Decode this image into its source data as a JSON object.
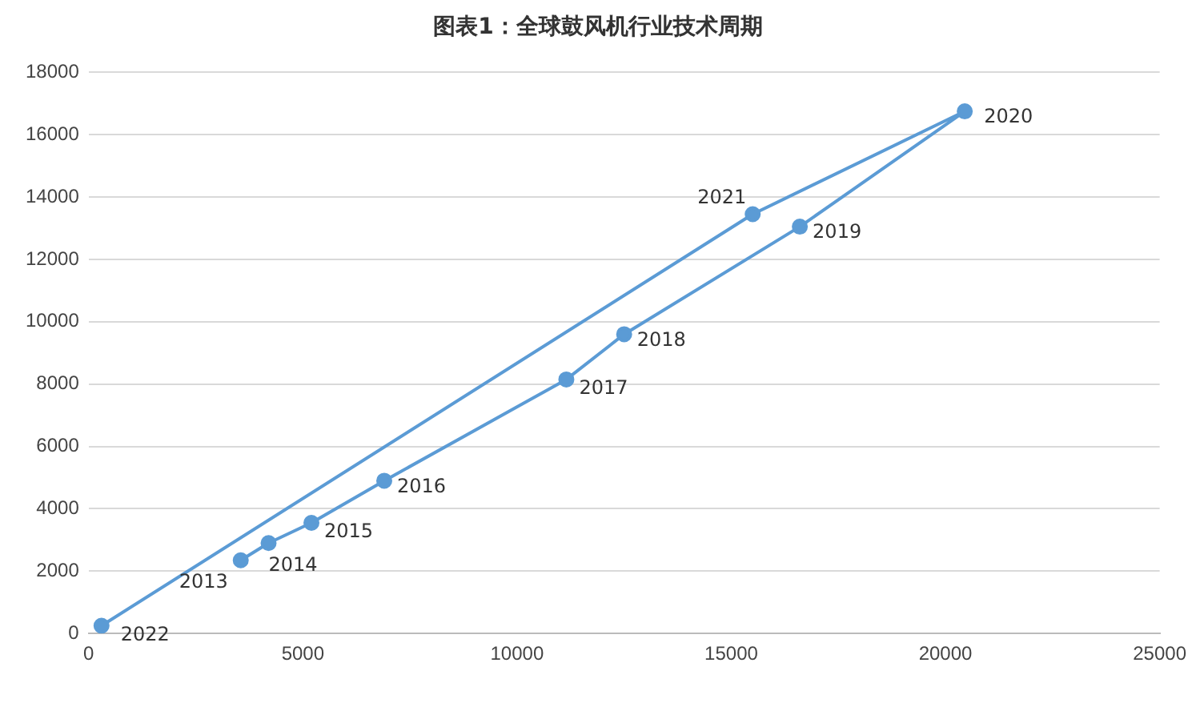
{
  "chart_data": {
    "type": "line",
    "title": "图表1：全球鼓风机行业技术周期",
    "x": [
      3550,
      4200,
      5200,
      6900,
      11150,
      12500,
      16600,
      20450,
      15500,
      300
    ],
    "series": [
      {
        "color": "#5b9bd5",
        "values": [
          2350,
          2900,
          3550,
          4900,
          8150,
          9600,
          13050,
          16750,
          13450,
          250
        ]
      }
    ],
    "xlim": [
      0,
      25000
    ],
    "xticks": [
      0,
      5000,
      10000,
      15000,
      20000,
      25000
    ],
    "ylim": [
      0,
      18000
    ],
    "yticks": [
      0,
      2000,
      4000,
      6000,
      8000,
      10000,
      12000,
      14000,
      16000,
      18000
    ],
    "grid": "y",
    "legend": false,
    "marker": "circle",
    "line_style": "solid",
    "annotations": [
      {
        "text": "2013",
        "x": 3550,
        "y": 2350
      },
      {
        "text": "2014",
        "x": 4200,
        "y": 2900
      },
      {
        "text": "2015",
        "x": 5200,
        "y": 3550
      },
      {
        "text": "2016",
        "x": 6900,
        "y": 4900
      },
      {
        "text": "2017",
        "x": 11150,
        "y": 8150
      },
      {
        "text": "2018",
        "x": 12500,
        "y": 9600
      },
      {
        "text": "2019",
        "x": 16600,
        "y": 13050
      },
      {
        "text": "2020",
        "x": 20450,
        "y": 16750
      },
      {
        "text": "2021",
        "x": 15500,
        "y": 13450
      },
      {
        "text": "2022",
        "x": 300,
        "y": 250
      }
    ]
  }
}
